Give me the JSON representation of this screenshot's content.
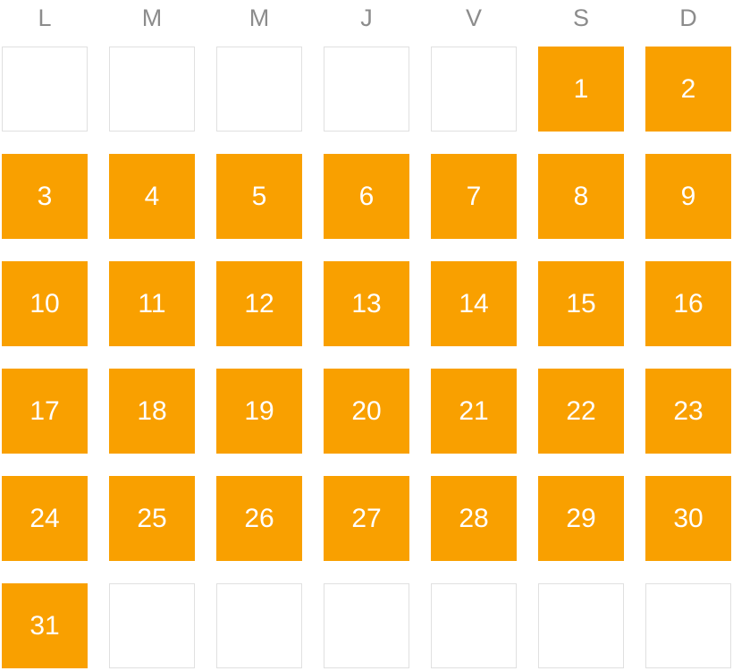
{
  "calendar": {
    "weekday_headers": [
      "L",
      "M",
      "M",
      "J",
      "V",
      "S",
      "D"
    ],
    "cells": [
      "",
      "",
      "",
      "",
      "",
      "1",
      "2",
      "3",
      "4",
      "5",
      "6",
      "7",
      "8",
      "9",
      "10",
      "11",
      "12",
      "13",
      "14",
      "15",
      "16",
      "17",
      "18",
      "19",
      "20",
      "21",
      "22",
      "23",
      "24",
      "25",
      "26",
      "27",
      "28",
      "29",
      "30",
      "31",
      "",
      "",
      "",
      "",
      "",
      ""
    ],
    "colors": {
      "active_bg": "#F9A000",
      "active_text": "#FFFFFF",
      "header_text": "#8C8C8C",
      "empty_border": "#E0E0E0",
      "empty_bg": "#FFFFFF"
    }
  }
}
